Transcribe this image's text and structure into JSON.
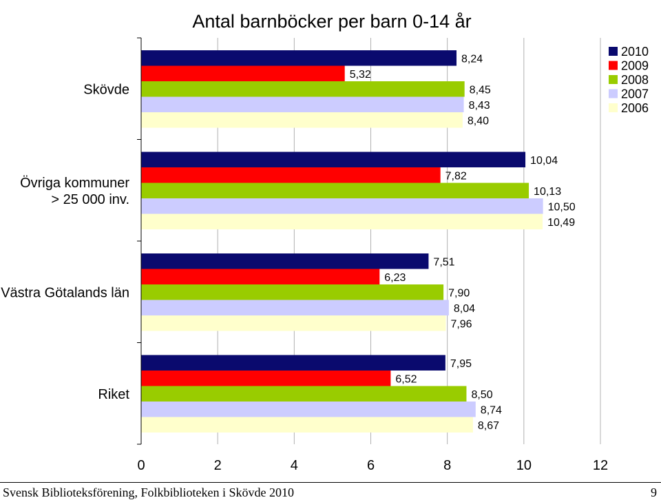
{
  "chart_data": {
    "type": "bar",
    "orientation": "horizontal",
    "title": "Antal barnböcker per barn 0-14 år",
    "categories": [
      "Skövde",
      "Övriga kommuner > 25 000 inv.",
      "Västra Götalands län",
      "Riket"
    ],
    "category_label_lines": [
      [
        "Skövde"
      ],
      [
        "Övriga kommuner",
        "> 25 000 inv."
      ],
      [
        "Västra Götalands län"
      ],
      [
        "Riket"
      ]
    ],
    "series": [
      {
        "name": "2010",
        "color": "#0a0a6e",
        "values": [
          8.24,
          10.04,
          7.51,
          7.95
        ],
        "labels": [
          "8,24",
          "10,04",
          "7,51",
          "7,95"
        ]
      },
      {
        "name": "2009",
        "color": "#ff0000",
        "values": [
          5.32,
          7.82,
          6.23,
          6.52
        ],
        "labels": [
          "5,32",
          "7,82",
          "6,23",
          "6,52"
        ]
      },
      {
        "name": "2008",
        "color": "#99cc00",
        "values": [
          8.45,
          10.13,
          7.9,
          8.5
        ],
        "labels": [
          "8,45",
          "10,13",
          "7,90",
          "8,50"
        ]
      },
      {
        "name": "2007",
        "color": "#ccccff",
        "values": [
          8.43,
          10.5,
          8.04,
          8.74
        ],
        "labels": [
          "8,43",
          "10,50",
          "8,04",
          "8,74"
        ]
      },
      {
        "name": "2006",
        "color": "#ffffcc",
        "values": [
          8.4,
          10.49,
          7.96,
          8.67
        ],
        "labels": [
          "8,40",
          "10,49",
          "7,96",
          "8,67"
        ]
      }
    ],
    "xlim": [
      0,
      12
    ],
    "xticks": [
      "0",
      "2",
      "4",
      "6",
      "8",
      "10",
      "12"
    ],
    "grid": "vertical",
    "legend_position": "top-right"
  },
  "footer": {
    "left": "Svensk Biblioteksförening, Folkbiblioteken i Skövde 2010",
    "right": "9"
  }
}
